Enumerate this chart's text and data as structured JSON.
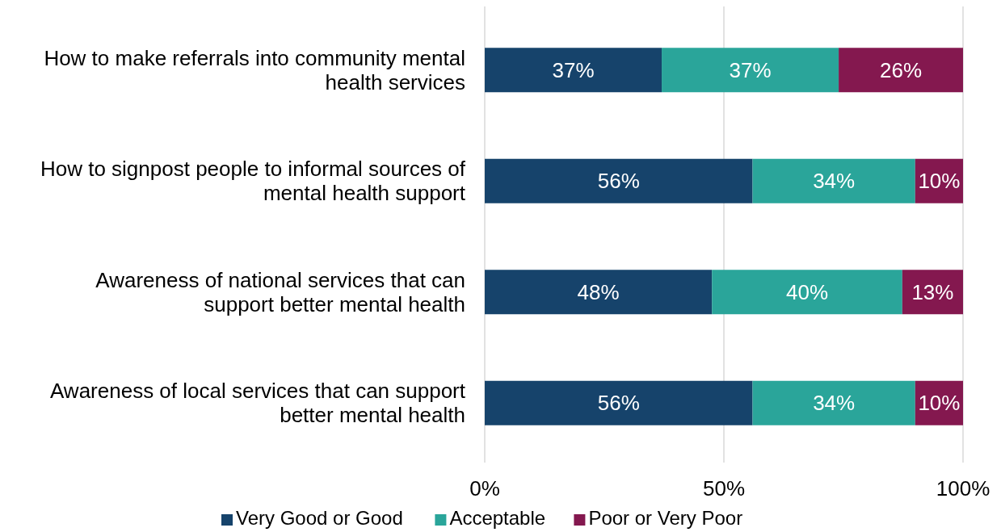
{
  "chart_data": {
    "type": "bar",
    "orientation": "horizontal",
    "stacked": true,
    "categories": [
      "How to make referrals into community mental health services",
      "How to signpost people to informal sources of mental health support",
      "Awareness of national services that can support better mental health",
      "Awareness of local services that can support better mental health"
    ],
    "series": [
      {
        "name": "Very Good or Good",
        "color": "#16436b",
        "values": [
          37,
          56,
          47.5,
          56
        ],
        "value_labels": [
          "37%",
          "56%",
          "48%",
          "56%"
        ]
      },
      {
        "name": "Acceptable",
        "color": "#2aa59a",
        "values": [
          37,
          34,
          39.8,
          34
        ],
        "value_labels": [
          "37%",
          "34%",
          "40%",
          "34%"
        ]
      },
      {
        "name": "Poor or Very Poor",
        "color": "#84184f",
        "values": [
          26,
          10,
          12.7,
          10
        ],
        "value_labels": [
          "26%",
          "10%",
          "13%",
          "10%"
        ]
      }
    ],
    "xlim": [
      0,
      100
    ],
    "xticks": [
      {
        "value": 0,
        "label": "0%"
      },
      {
        "value": 50,
        "label": "50%"
      },
      {
        "value": 100,
        "label": "100%"
      }
    ],
    "grid": "x",
    "legend": "bottom"
  }
}
